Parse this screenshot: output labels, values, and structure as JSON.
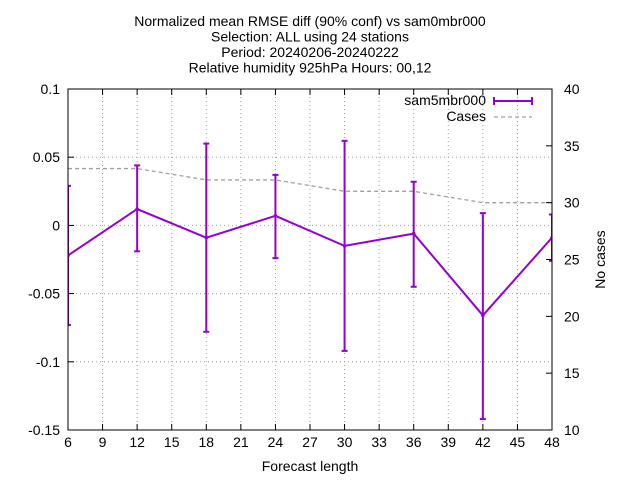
{
  "chart_data": {
    "type": "line",
    "title_lines": [
      "Normalized mean RMSE diff (90% conf) vs sam0mbr000",
      "Selection: ALL using    24 stations",
      "Period: 20240206-20240222",
      "Relative humidity 925hPa   Hours: 00,12"
    ],
    "xlabel": "Forecast length",
    "ylabel_right": "No cases",
    "xlim": [
      6,
      48
    ],
    "ylim_left": [
      -0.15,
      0.1
    ],
    "ylim_right": [
      10,
      40
    ],
    "x_ticks": [
      "6",
      "9",
      "12",
      "15",
      "18",
      "21",
      "24",
      "27",
      "30",
      "33",
      "36",
      "39",
      "42",
      "45",
      "48"
    ],
    "y_ticks_left": [
      "0.1",
      "0.05",
      "0",
      "-0.05",
      "-0.1",
      "-0.15"
    ],
    "y_ticks_right": [
      "40",
      "35",
      "30",
      "25",
      "20",
      "15",
      "10"
    ],
    "grid": true,
    "legend_position": "top-right",
    "series": [
      {
        "name": "sam5mbr000",
        "axis": "left",
        "color": "#9400d3",
        "x": [
          6,
          12,
          18,
          24,
          30,
          36,
          42,
          48
        ],
        "values": [
          -0.022,
          0.012,
          -0.009,
          0.007,
          -0.015,
          -0.006,
          -0.066,
          -0.009
        ],
        "err_low": [
          -0.073,
          -0.019,
          -0.078,
          -0.024,
          -0.092,
          -0.045,
          -0.142,
          -0.026
        ],
        "err_high": [
          0.029,
          0.044,
          0.06,
          0.037,
          0.062,
          0.032,
          0.009,
          0.008
        ]
      },
      {
        "name": "Cases",
        "axis": "right",
        "color": "#a0a0a0",
        "dashed": true,
        "x": [
          6,
          12,
          18,
          24,
          30,
          36,
          42,
          48
        ],
        "values": [
          33,
          33,
          32,
          32,
          31,
          31,
          30,
          30
        ]
      }
    ]
  }
}
